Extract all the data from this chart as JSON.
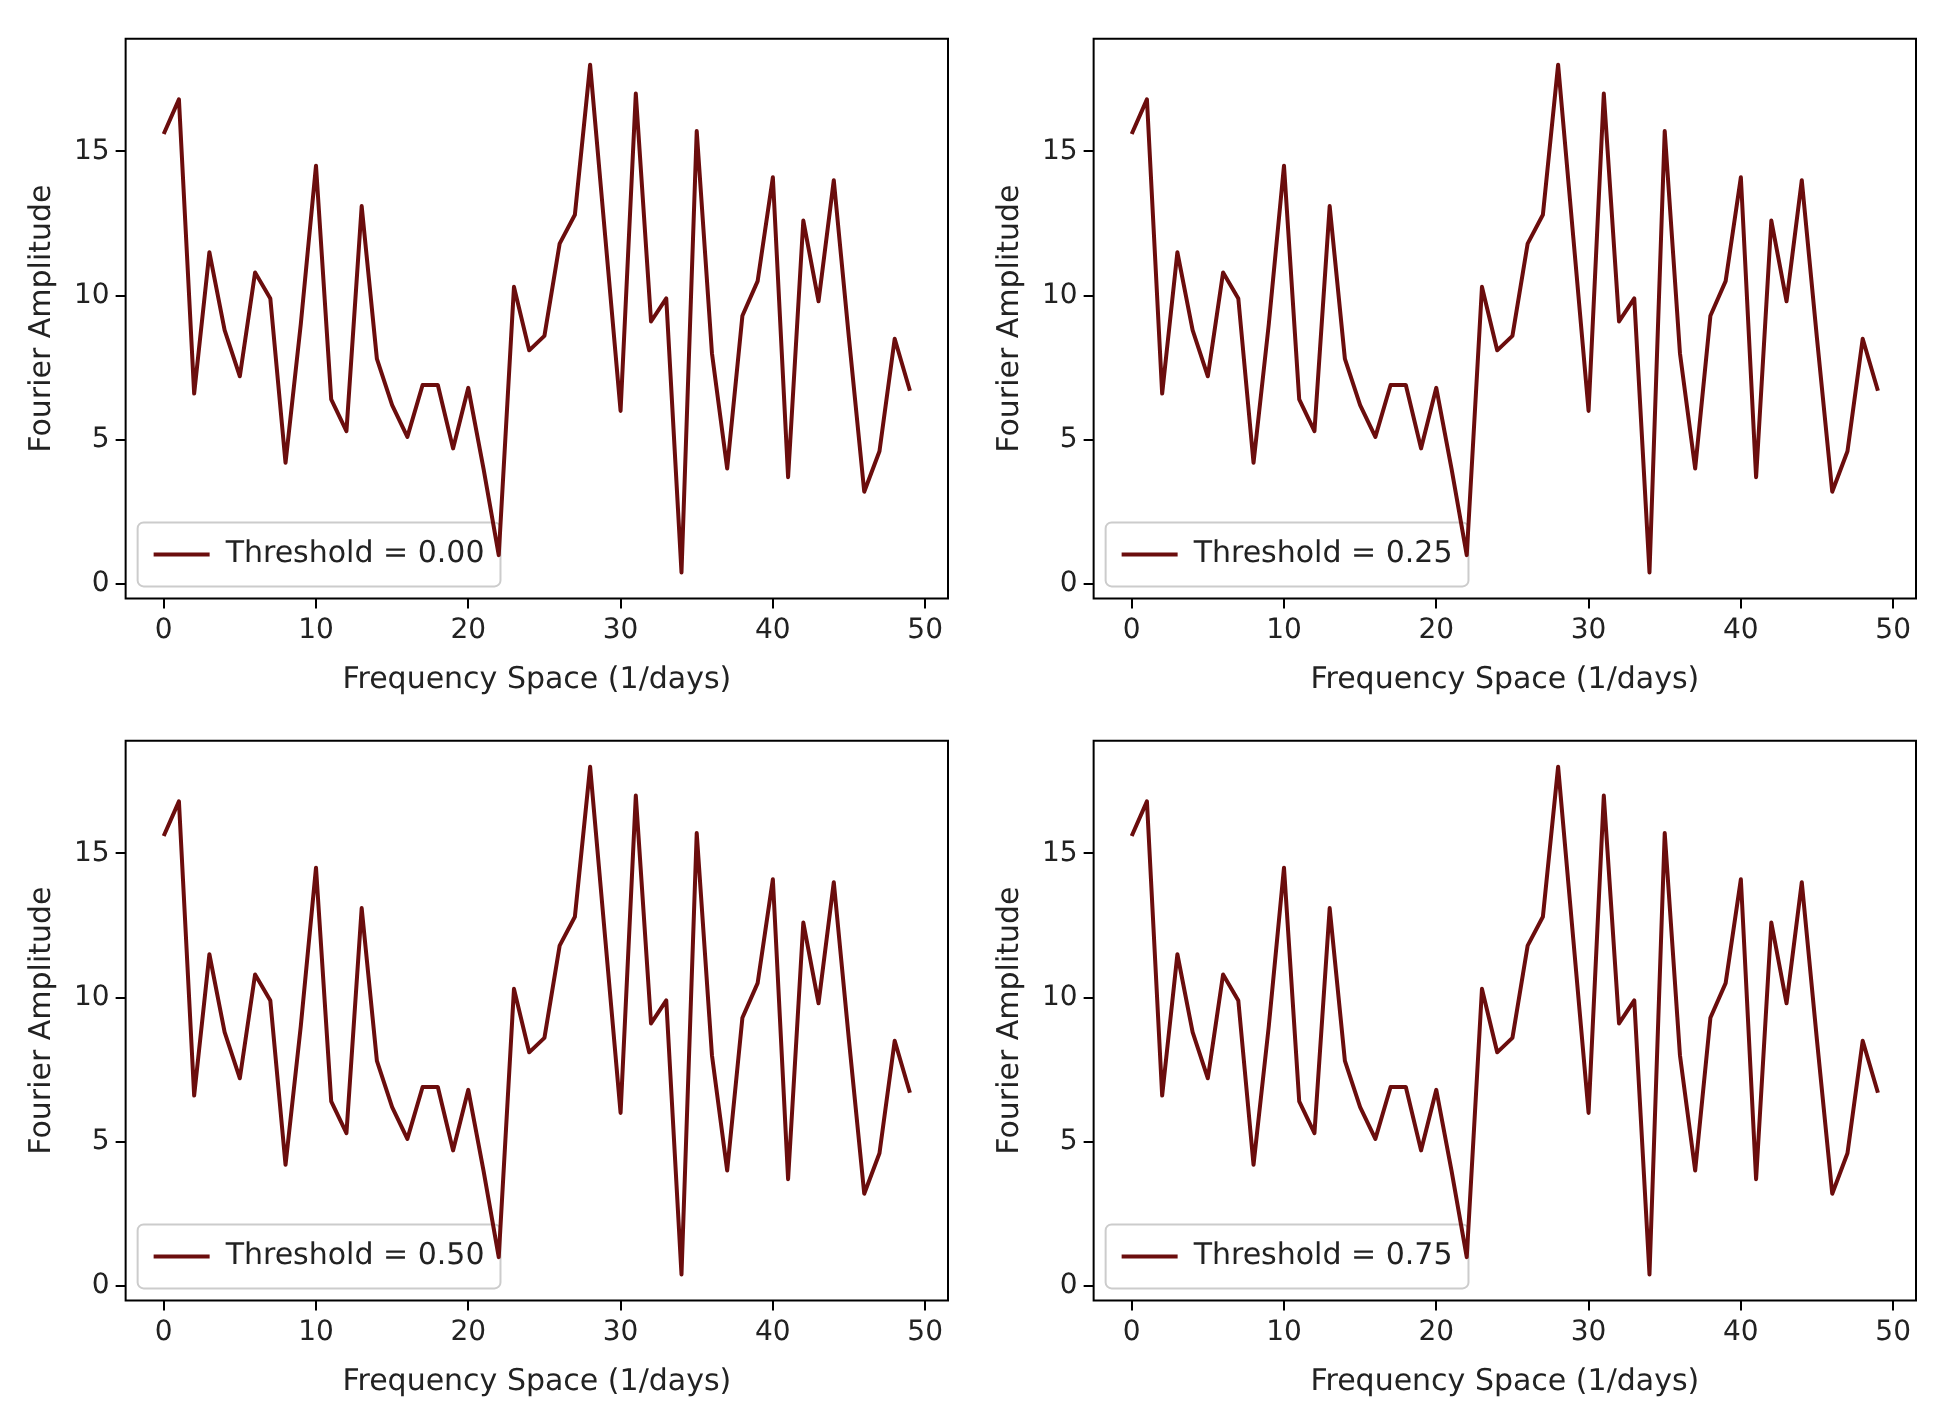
{
  "chart_data": [
    {
      "type": "line",
      "xlabel": "Frequency Space (1/days)",
      "ylabel": "Fourier Amplitude",
      "x": [
        0,
        1,
        2,
        3,
        4,
        5,
        6,
        7,
        8,
        9,
        10,
        11,
        12,
        13,
        14,
        15,
        16,
        17,
        18,
        19,
        20,
        21,
        22,
        23,
        24,
        25,
        26,
        27,
        28,
        29,
        30,
        31,
        32,
        33,
        34,
        35,
        36,
        37,
        38,
        39,
        40,
        41,
        42,
        43,
        44,
        45,
        46,
        47,
        48,
        49
      ],
      "xlim": [
        -2.5,
        51.5
      ],
      "xticks": [
        0,
        10,
        20,
        30,
        40,
        50
      ],
      "ylim": [
        -0.5,
        18.9
      ],
      "yticks": [
        0,
        5,
        10,
        15
      ],
      "grid": false,
      "legend": "bottom left",
      "marker": "none",
      "line_style": "solid",
      "series": [
        {
          "name": "Threshold = 0.00",
          "color": "#6b0d0d",
          "values": [
            15.6,
            16.8,
            6.6,
            11.5,
            8.8,
            7.2,
            10.8,
            9.9,
            4.2,
            9,
            14.5,
            6.4,
            5.3,
            13.1,
            7.8,
            6.2,
            5.1,
            6.9,
            6.9,
            4.7,
            6.8,
            4,
            1,
            10.3,
            8.1,
            8.6,
            11.8,
            12.8,
            18,
            12,
            6,
            17,
            9.1,
            9.9,
            0.4,
            15.7,
            8,
            4,
            9.3,
            10.5,
            14.1,
            3.7,
            12.6,
            9.8,
            14,
            8.5,
            3.2,
            4.6,
            8.5,
            6.7
          ]
        }
      ]
    },
    {
      "type": "line",
      "xlabel": "Frequency Space (1/days)",
      "ylabel": "Fourier Amplitude",
      "x": [
        0,
        1,
        2,
        3,
        4,
        5,
        6,
        7,
        8,
        9,
        10,
        11,
        12,
        13,
        14,
        15,
        16,
        17,
        18,
        19,
        20,
        21,
        22,
        23,
        24,
        25,
        26,
        27,
        28,
        29,
        30,
        31,
        32,
        33,
        34,
        35,
        36,
        37,
        38,
        39,
        40,
        41,
        42,
        43,
        44,
        45,
        46,
        47,
        48,
        49
      ],
      "xlim": [
        -2.5,
        51.5
      ],
      "xticks": [
        0,
        10,
        20,
        30,
        40,
        50
      ],
      "ylim": [
        -0.5,
        18.9
      ],
      "yticks": [
        0,
        5,
        10,
        15
      ],
      "grid": false,
      "legend": "bottom left",
      "marker": "none",
      "line_style": "solid",
      "series": [
        {
          "name": "Threshold = 0.25",
          "color": "#6b0d0d",
          "values": [
            15.6,
            16.8,
            6.6,
            11.5,
            8.8,
            7.2,
            10.8,
            9.9,
            4.2,
            9,
            14.5,
            6.4,
            5.3,
            13.1,
            7.8,
            6.2,
            5.1,
            6.9,
            6.9,
            4.7,
            6.8,
            4,
            1,
            10.3,
            8.1,
            8.6,
            11.8,
            12.8,
            18,
            12,
            6,
            17,
            9.1,
            9.9,
            0.4,
            15.7,
            8,
            4,
            9.3,
            10.5,
            14.1,
            3.7,
            12.6,
            9.8,
            14,
            8.5,
            3.2,
            4.6,
            8.5,
            6.7
          ]
        }
      ]
    },
    {
      "type": "line",
      "xlabel": "Frequency Space (1/days)",
      "ylabel": "Fourier Amplitude",
      "x": [
        0,
        1,
        2,
        3,
        4,
        5,
        6,
        7,
        8,
        9,
        10,
        11,
        12,
        13,
        14,
        15,
        16,
        17,
        18,
        19,
        20,
        21,
        22,
        23,
        24,
        25,
        26,
        27,
        28,
        29,
        30,
        31,
        32,
        33,
        34,
        35,
        36,
        37,
        38,
        39,
        40,
        41,
        42,
        43,
        44,
        45,
        46,
        47,
        48,
        49
      ],
      "xlim": [
        -2.5,
        51.5
      ],
      "xticks": [
        0,
        10,
        20,
        30,
        40,
        50
      ],
      "ylim": [
        -0.5,
        18.9
      ],
      "yticks": [
        0,
        5,
        10,
        15
      ],
      "grid": false,
      "legend": "bottom left",
      "marker": "none",
      "line_style": "solid",
      "series": [
        {
          "name": "Threshold = 0.50",
          "color": "#6b0d0d",
          "values": [
            15.6,
            16.8,
            6.6,
            11.5,
            8.8,
            7.2,
            10.8,
            9.9,
            4.2,
            9,
            14.5,
            6.4,
            5.3,
            13.1,
            7.8,
            6.2,
            5.1,
            6.9,
            6.9,
            4.7,
            6.8,
            4,
            1,
            10.3,
            8.1,
            8.6,
            11.8,
            12.8,
            18,
            12,
            6,
            17,
            9.1,
            9.9,
            0.4,
            15.7,
            8,
            4,
            9.3,
            10.5,
            14.1,
            3.7,
            12.6,
            9.8,
            14,
            8.5,
            3.2,
            4.6,
            8.5,
            6.7
          ]
        }
      ]
    },
    {
      "type": "line",
      "xlabel": "Frequency Space (1/days)",
      "ylabel": "Fourier Amplitude",
      "x": [
        0,
        1,
        2,
        3,
        4,
        5,
        6,
        7,
        8,
        9,
        10,
        11,
        12,
        13,
        14,
        15,
        16,
        17,
        18,
        19,
        20,
        21,
        22,
        23,
        24,
        25,
        26,
        27,
        28,
        29,
        30,
        31,
        32,
        33,
        34,
        35,
        36,
        37,
        38,
        39,
        40,
        41,
        42,
        43,
        44,
        45,
        46,
        47,
        48,
        49
      ],
      "xlim": [
        -2.5,
        51.5
      ],
      "xticks": [
        0,
        10,
        20,
        30,
        40,
        50
      ],
      "ylim": [
        -0.5,
        18.9
      ],
      "yticks": [
        0,
        5,
        10,
        15
      ],
      "grid": false,
      "legend": "bottom left",
      "marker": "none",
      "line_style": "solid",
      "series": [
        {
          "name": "Threshold = 0.75",
          "color": "#6b0d0d",
          "values": [
            15.6,
            16.8,
            6.6,
            11.5,
            8.8,
            7.2,
            10.8,
            9.9,
            4.2,
            9,
            14.5,
            6.4,
            5.3,
            13.1,
            7.8,
            6.2,
            5.1,
            6.9,
            6.9,
            4.7,
            6.8,
            4,
            1,
            10.3,
            8.1,
            8.6,
            11.8,
            12.8,
            18,
            12,
            6,
            17,
            9.1,
            9.9,
            0.4,
            15.7,
            8,
            4,
            9.3,
            10.5,
            14.1,
            3.7,
            12.6,
            9.8,
            14,
            8.5,
            3.2,
            4.6,
            8.5,
            6.7
          ]
        }
      ]
    }
  ]
}
